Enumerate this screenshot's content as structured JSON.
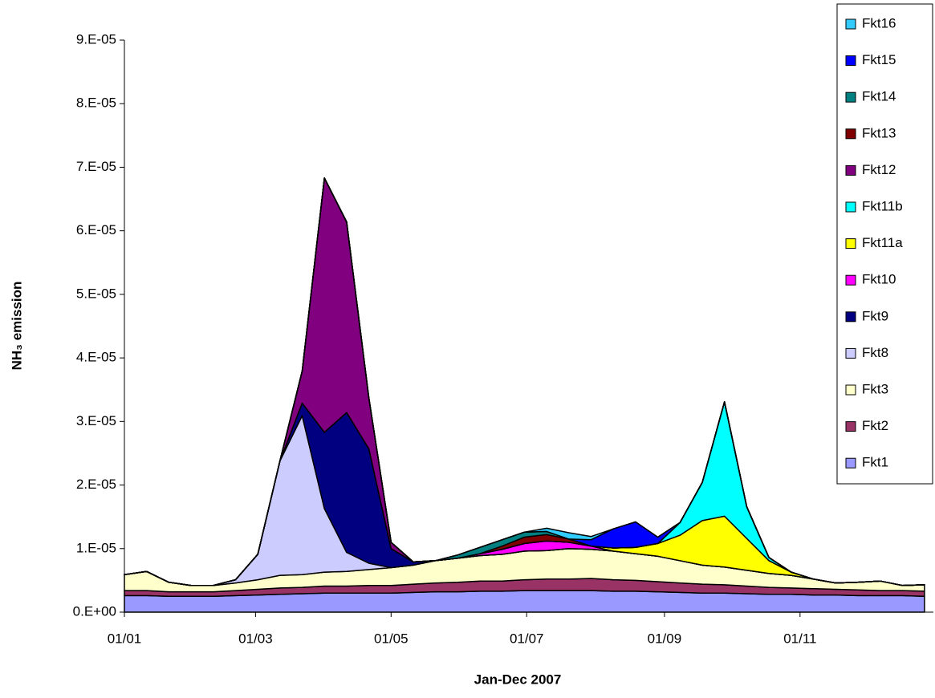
{
  "chart_data": {
    "type": "stacked-area",
    "x_label": "Jan-Dec 2007",
    "y_label": "NH₃ emission",
    "x": [
      "01/01",
      "11/01",
      "21/01",
      "31/01",
      "10/02",
      "20/02",
      "02/03",
      "12/03",
      "22/03",
      "01/04",
      "11/04",
      "21/04",
      "01/05",
      "11/05",
      "21/05",
      "31/05",
      "10/06",
      "20/06",
      "30/06",
      "10/07",
      "20/07",
      "30/07",
      "09/08",
      "19/08",
      "29/08",
      "08/09",
      "18/09",
      "28/09",
      "08/10",
      "18/10",
      "28/10",
      "07/11",
      "17/11",
      "27/11",
      "07/12",
      "17/12",
      "27/12"
    ],
    "xlim": [
      "01/01",
      "31/12"
    ],
    "xticks": [
      "01/01",
      "01/03",
      "01/05",
      "01/07",
      "01/09",
      "01/11"
    ],
    "ylim": [
      0,
      9e-05
    ],
    "yticks": [
      {
        "value": 0,
        "label": "0.E+00"
      },
      {
        "value": 1e-05,
        "label": "1.E-05"
      },
      {
        "value": 2e-05,
        "label": "2.E-05"
      },
      {
        "value": 3e-05,
        "label": "3.E-05"
      },
      {
        "value": 4e-05,
        "label": "4.E-05"
      },
      {
        "value": 5e-05,
        "label": "5.E-05"
      },
      {
        "value": 6e-05,
        "label": "6.E-05"
      },
      {
        "value": 7e-05,
        "label": "7.E-05"
      },
      {
        "value": 8e-05,
        "label": "8.E-05"
      },
      {
        "value": 9e-05,
        "label": "9.E-05"
      }
    ],
    "series": [
      {
        "name": "Fkt1",
        "color": "#9999ff",
        "values": [
          2.6e-06,
          2.6e-06,
          2.5e-06,
          2.5e-06,
          2.5e-06,
          2.6e-06,
          2.7e-06,
          2.8e-06,
          2.9e-06,
          3e-06,
          3e-06,
          3e-06,
          3e-06,
          3.1e-06,
          3.2e-06,
          3.2e-06,
          3.3e-06,
          3.3e-06,
          3.4e-06,
          3.4e-06,
          3.4e-06,
          3.4e-06,
          3.3e-06,
          3.3e-06,
          3.2e-06,
          3.1e-06,
          3e-06,
          3e-06,
          2.9e-06,
          2.8e-06,
          2.8e-06,
          2.7e-06,
          2.7e-06,
          2.6e-06,
          2.6e-06,
          2.6e-06,
          2.5e-06
        ]
      },
      {
        "name": "Fkt2",
        "color": "#993366",
        "values": [
          8e-07,
          8e-07,
          7e-07,
          7e-07,
          7e-07,
          8e-07,
          9e-07,
          1e-06,
          1e-06,
          1.1e-06,
          1.1e-06,
          1.2e-06,
          1.2e-06,
          1.3e-06,
          1.4e-06,
          1.5e-06,
          1.6e-06,
          1.6e-06,
          1.7e-06,
          1.8e-06,
          1.8e-06,
          1.9e-06,
          1.8e-06,
          1.7e-06,
          1.6e-06,
          1.5e-06,
          1.4e-06,
          1.3e-06,
          1.2e-06,
          1.1e-06,
          1e-06,
          1e-06,
          9e-07,
          9e-07,
          8e-07,
          8e-07,
          8e-07
        ]
      },
      {
        "name": "Fkt3",
        "color": "#ffffcc",
        "values": [
          2.5e-06,
          3e-06,
          1.5e-06,
          1e-06,
          1e-06,
          1.2e-06,
          1.5e-06,
          2e-06,
          2e-06,
          2.2e-06,
          2.3e-06,
          2.5e-06,
          2.8e-06,
          3e-06,
          3.5e-06,
          3.8e-06,
          4e-06,
          4.2e-06,
          4.5e-06,
          4.5e-06,
          4.8e-06,
          4.6e-06,
          4.5e-06,
          4.2e-06,
          4e-06,
          3.5e-06,
          3e-06,
          2.8e-06,
          2.5e-06,
          2.2e-06,
          2e-06,
          1.5e-06,
          1e-06,
          1.2e-06,
          1.5e-06,
          8e-07,
          1e-06
        ]
      },
      {
        "name": "Fkt8",
        "color": "#ccccff",
        "values": [
          0,
          0,
          0,
          0,
          0,
          5e-07,
          4e-06,
          1.8e-05,
          2.5e-05,
          1e-05,
          3e-06,
          1e-06,
          0,
          0,
          0,
          0,
          0,
          0,
          0,
          0,
          0,
          0,
          0,
          0,
          0,
          0,
          0,
          0,
          0,
          0,
          0,
          0,
          0,
          0,
          0,
          0,
          0
        ]
      },
      {
        "name": "Fkt9",
        "color": "#000080",
        "values": [
          0,
          0,
          0,
          0,
          0,
          0,
          0,
          0,
          2e-06,
          1.2e-05,
          2.2e-05,
          1.8e-05,
          3e-06,
          5e-07,
          0,
          0,
          0,
          0,
          0,
          0,
          0,
          0,
          0,
          0,
          0,
          0,
          0,
          0,
          0,
          0,
          0,
          0,
          0,
          0,
          0,
          0,
          0
        ]
      },
      {
        "name": "Fkt10",
        "color": "#ff00ff",
        "values": [
          0,
          0,
          0,
          0,
          0,
          0,
          0,
          0,
          0,
          0,
          0,
          0,
          0,
          0,
          0,
          0,
          3e-07,
          8e-07,
          1.2e-06,
          1.5e-06,
          1e-06,
          5e-07,
          0,
          0,
          0,
          0,
          0,
          0,
          0,
          0,
          0,
          0,
          0,
          0,
          0,
          0,
          0
        ]
      },
      {
        "name": "Fkt11a",
        "color": "#ffff00",
        "values": [
          0,
          0,
          0,
          0,
          0,
          0,
          0,
          0,
          0,
          0,
          0,
          0,
          0,
          0,
          0,
          0,
          0,
          0,
          0,
          0,
          0,
          0,
          5e-07,
          1e-06,
          2e-06,
          4e-06,
          7e-06,
          8e-06,
          5e-06,
          2e-06,
          5e-07,
          0,
          0,
          0,
          0,
          0,
          0
        ]
      },
      {
        "name": "Fkt11b",
        "color": "#00ffff",
        "values": [
          0,
          0,
          0,
          0,
          0,
          0,
          0,
          0,
          0,
          0,
          0,
          0,
          0,
          0,
          0,
          0,
          0,
          0,
          0,
          0,
          0,
          0,
          0,
          0,
          0,
          2e-06,
          6e-06,
          1.8e-05,
          5e-06,
          5e-07,
          0,
          0,
          0,
          0,
          0,
          0,
          0
        ]
      },
      {
        "name": "Fkt12",
        "color": "#800080",
        "values": [
          0,
          0,
          0,
          0,
          0,
          0,
          0,
          0,
          5e-06,
          4e-05,
          3e-05,
          8e-06,
          1e-06,
          0,
          0,
          0,
          0,
          0,
          0,
          0,
          0,
          0,
          0,
          0,
          0,
          0,
          0,
          0,
          0,
          0,
          0,
          0,
          0,
          0,
          0,
          0,
          0
        ]
      },
      {
        "name": "Fkt13",
        "color": "#800000",
        "values": [
          0,
          0,
          0,
          0,
          0,
          0,
          0,
          0,
          0,
          0,
          0,
          0,
          0,
          0,
          0,
          0,
          0,
          5e-07,
          1e-06,
          1e-06,
          5e-07,
          0,
          0,
          0,
          0,
          0,
          0,
          0,
          0,
          0,
          0,
          0,
          0,
          0,
          0,
          0,
          0
        ]
      },
      {
        "name": "Fkt14",
        "color": "#008080",
        "values": [
          0,
          0,
          0,
          0,
          0,
          0,
          0,
          0,
          0,
          0,
          0,
          0,
          0,
          0,
          0,
          5e-07,
          1e-06,
          1e-06,
          8e-07,
          5e-07,
          0,
          0,
          0,
          0,
          0,
          0,
          0,
          0,
          0,
          0,
          0,
          0,
          0,
          0,
          0,
          0,
          0
        ]
      },
      {
        "name": "Fkt15",
        "color": "#0000ff",
        "values": [
          0,
          0,
          0,
          0,
          0,
          0,
          0,
          0,
          0,
          0,
          0,
          0,
          0,
          0,
          0,
          0,
          0,
          0,
          0,
          0,
          0,
          1e-06,
          3e-06,
          4e-06,
          1e-06,
          0,
          0,
          0,
          0,
          0,
          0,
          0,
          0,
          0,
          0,
          0,
          0
        ]
      },
      {
        "name": "Fkt16",
        "color": "#33ccff",
        "values": [
          0,
          0,
          0,
          0,
          0,
          0,
          0,
          0,
          0,
          0,
          0,
          0,
          0,
          0,
          0,
          0,
          0,
          0,
          0,
          5e-07,
          1e-06,
          5e-07,
          0,
          0,
          0,
          0,
          0,
          0,
          0,
          0,
          0,
          0,
          0,
          0,
          0,
          0,
          0
        ]
      }
    ]
  }
}
